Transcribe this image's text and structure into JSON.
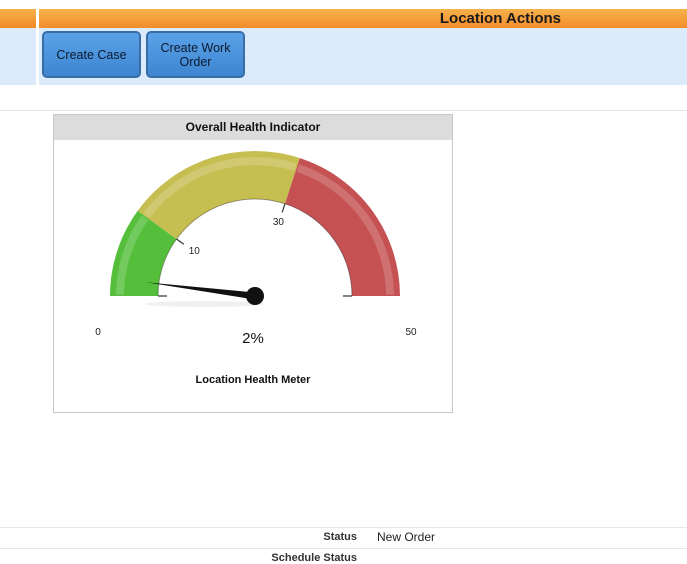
{
  "header": {
    "title": "Location Actions"
  },
  "actions": {
    "create_case": "Create Case",
    "create_work_order": "Create Work Order"
  },
  "gauge": {
    "title": "Overall Health Indicator",
    "min_label": "0",
    "max_label": "50",
    "tick_10": "10",
    "tick_30": "30",
    "value_text": "2%",
    "caption": "Location Health Meter",
    "value": 2,
    "min": 0,
    "max": 50,
    "bands": [
      {
        "from": 0,
        "to": 10,
        "color": "#55bf3b"
      },
      {
        "from": 10,
        "to": 30,
        "color": "#c7be52"
      },
      {
        "from": 30,
        "to": 50,
        "color": "#c55152"
      }
    ]
  },
  "details": {
    "status_label": "Status",
    "status_value": "New Order",
    "schedule_status_label": "Schedule Status"
  }
}
